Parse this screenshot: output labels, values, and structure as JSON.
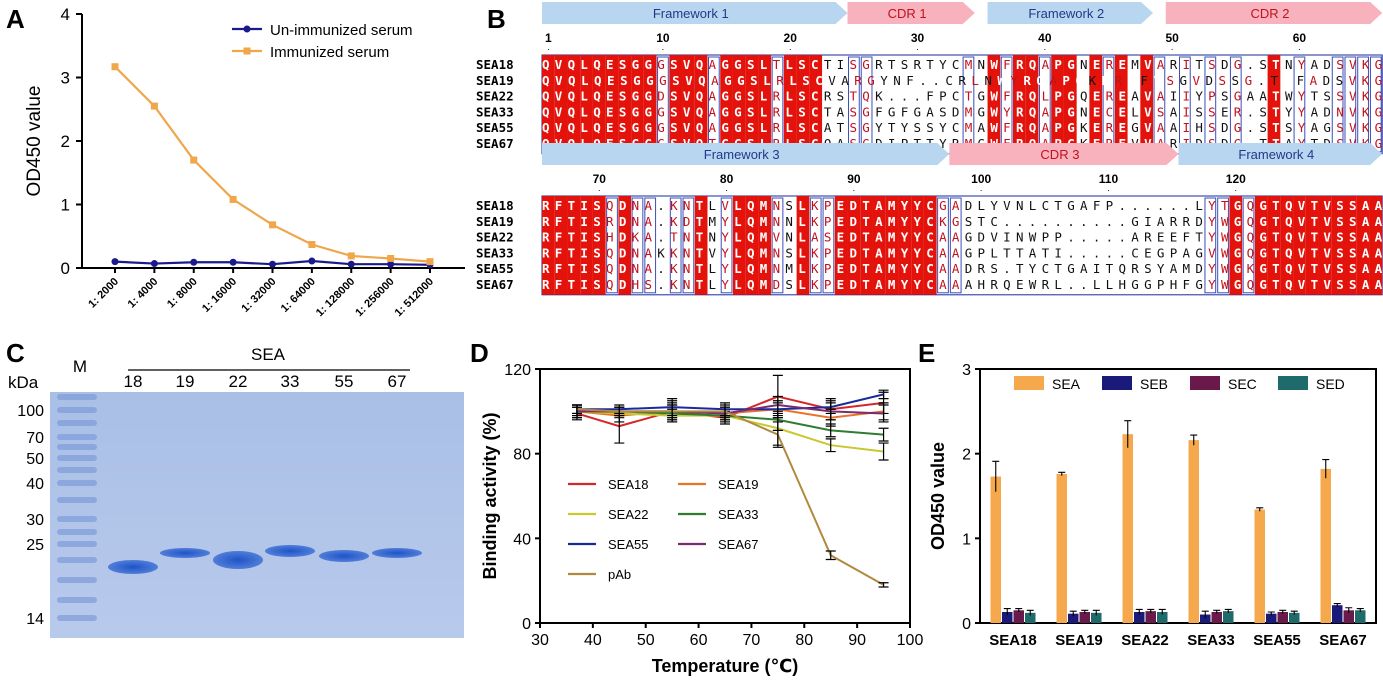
{
  "chart_data": [
    {
      "panel": "A",
      "type": "line",
      "xlabel": "",
      "ylabel": "OD450 value",
      "ylim": [
        0,
        4
      ],
      "yticks": [
        "0",
        "1",
        "2",
        "3",
        "4"
      ],
      "categories": [
        "1: 2000",
        "1: 4000",
        "1: 8000",
        "1: 16000",
        "1: 32000",
        "1: 64000",
        "1: 128000",
        "1: 256000",
        "1: 512000"
      ],
      "series": [
        {
          "name": "Un-immunized serum",
          "color": "#1a1a8c",
          "values": [
            0.1,
            0.07,
            0.09,
            0.09,
            0.06,
            0.11,
            0.06,
            0.06,
            0.05
          ]
        },
        {
          "name": "Immunized serum",
          "color": "#f0a64a",
          "values": [
            3.17,
            2.55,
            1.7,
            1.08,
            0.68,
            0.37,
            0.19,
            0.15,
            0.1
          ]
        }
      ],
      "legend_position": "top-right"
    },
    {
      "panel": "D",
      "type": "line",
      "xlabel": "Temperature (℃)",
      "ylabel": "Binding activity (%)",
      "xlim": [
        30,
        100
      ],
      "ylim": [
        0,
        120
      ],
      "xticks": [
        "30",
        "40",
        "50",
        "60",
        "70",
        "80",
        "90",
        "100"
      ],
      "yticks": [
        "0",
        "40",
        "80",
        "120"
      ],
      "x": [
        37,
        45,
        55,
        65,
        75,
        85,
        95
      ],
      "series": [
        {
          "name": "SEA18",
          "color": "#d62728",
          "values": [
            99,
            93,
            100,
            97,
            107,
            101,
            104
          ],
          "err": [
            3,
            8,
            5,
            3,
            10,
            5,
            5
          ]
        },
        {
          "name": "SEA19",
          "color": "#e8742c",
          "values": [
            100,
            98,
            100,
            99,
            101,
            97,
            100
          ],
          "err": [
            3,
            3,
            4,
            3,
            4,
            4,
            4
          ]
        },
        {
          "name": "SEA22",
          "color": "#c8c832",
          "values": [
            100,
            99,
            98,
            98,
            92,
            84,
            81
          ],
          "err": [
            2,
            2,
            3,
            3,
            8,
            3,
            4
          ]
        },
        {
          "name": "SEA33",
          "color": "#2e7d32",
          "values": [
            100,
            100,
            99,
            98,
            96,
            91,
            89
          ],
          "err": [
            2,
            2,
            3,
            3,
            5,
            3,
            3
          ]
        },
        {
          "name": "SEA55",
          "color": "#1a2a9c",
          "values": [
            101,
            101,
            102,
            101,
            101,
            102,
            108
          ],
          "err": [
            2,
            2,
            4,
            3,
            3,
            3,
            2
          ]
        },
        {
          "name": "SEA67",
          "color": "#7a2a6e",
          "values": [
            100,
            100,
            100,
            99,
            103,
            100,
            99
          ],
          "err": [
            3,
            2,
            3,
            3,
            4,
            4,
            4
          ]
        },
        {
          "name": "pAb",
          "color": "#b08a3e",
          "values": [
            101,
            100,
            100,
            100,
            89,
            32,
            18
          ],
          "err": [
            2,
            2,
            3,
            3,
            6,
            2,
            1
          ]
        }
      ],
      "legend_position": "bottom-left"
    },
    {
      "panel": "E",
      "type": "bar",
      "ylabel": "OD450 value",
      "ylim": [
        0,
        3
      ],
      "yticks": [
        "0",
        "1",
        "2",
        "3"
      ],
      "categories": [
        "SEA18",
        "SEA19",
        "SEA22",
        "SEA33",
        "SEA55",
        "SEA67"
      ],
      "series": [
        {
          "name": "SEA",
          "color": "#f5a84c",
          "values": [
            1.73,
            1.76,
            2.23,
            2.16,
            1.34,
            1.82
          ],
          "err": [
            0.18,
            0.02,
            0.16,
            0.06,
            0.02,
            0.11
          ]
        },
        {
          "name": "SEB",
          "color": "#1a1a7a",
          "values": [
            0.13,
            0.11,
            0.13,
            0.1,
            0.11,
            0.21
          ],
          "err": [
            0.04,
            0.03,
            0.03,
            0.04,
            0.02,
            0.02
          ]
        },
        {
          "name": "SEC",
          "color": "#6a1a4a",
          "values": [
            0.15,
            0.13,
            0.14,
            0.13,
            0.13,
            0.15
          ],
          "err": [
            0.02,
            0.02,
            0.02,
            0.02,
            0.02,
            0.03
          ]
        },
        {
          "name": "SED",
          "color": "#1f6a6a",
          "values": [
            0.12,
            0.12,
            0.13,
            0.14,
            0.12,
            0.15
          ],
          "err": [
            0.03,
            0.03,
            0.03,
            0.02,
            0.02,
            0.02
          ]
        }
      ],
      "legend_position": "top"
    }
  ],
  "panels": {
    "A": "A",
    "B": "B",
    "C": "C",
    "D": "D",
    "E": "E"
  },
  "alignment": {
    "regions1": [
      "Framework 1",
      "CDR 1",
      "Framework 2",
      "CDR 2"
    ],
    "ticks1": [
      "1",
      "10",
      "20",
      "30",
      "40",
      "50",
      "60"
    ],
    "regions2": [
      "Framework 3",
      "CDR 3",
      "Framework 4"
    ],
    "ticks2": [
      "70",
      "80",
      "90",
      "100",
      "110",
      "120"
    ],
    "names": [
      "SEA18",
      "SEA19",
      "SEA22",
      "SEA33",
      "SEA55",
      "SEA67"
    ],
    "block1": [
      "QVQLQESGGGSVQAGGSLTLSCTISGRTSRTYCMNWFRQAPGNEREMVARITSDG.STNYADSVKG",
      "QVQLQESGGGSVQAGGSLRLSCVARGYNF..CRLNWYRQAPGKEREFVSGVDSSG.TTFADSVKG",
      "QVQLQESGGDSVQAGGSLRLSCRSTQK...FPCTGWFRQLPGQEREAVAIIYPSGAATWYTSSVKG",
      "QVQLQESGGGSVQAGGSLRLSCTASGFGFGASDMGWYRQAPGNECELVSAISSER.STYYADNVKG",
      "QVQLQESGGGSVQAGGSLRLSCATSGYTYSSYCMAWFRQAPGKEREGVAAIHSDG.STSYAGSVKG",
      "QVQLQESGGGSVQTGGSLRLSCQASGDIPTTYRMGWFRQAPGKEREVVARIDSDG.TTAYTDSVKG"
    ],
    "block2": [
      "RFTISQDNA.KNTLVLQMNSLKPEDTAMYYCGADLYVNLCTGAFP......LYTGQGTQVTVSSAA",
      "RFTISRDNA.KDTMYLQMNNLKPEDTAMYYCKGSTC..........GIARRDYWGQGTQVTVSSAA",
      "RFTISHDKA.TNTNYLQMVNLASEDTAMYYCAAGDVINWPP.....AREEFTYWGQGTQVTVSSAA",
      "RFTISQDNAKKNTVYLQMNSLKPEDTAMYYCAAGPLTTATI.....CEGPAGVWGQGTQVTVSSAA",
      "RFTISQDNA.KNTLYLQMNMLKPEDTAMYYCAADRS.TYCTGAITQRSYAMDYWGKGTQVTVSSAA",
      "RFTISQDHS.KNTLYLQMDSLKPEDTAMYYCAAAHRQEWRL..LLHGGPHFGYWGQGTQVTVSSAA"
    ]
  },
  "gel": {
    "kda_label": "kDa",
    "marker_label": "M",
    "group_label": "SEA",
    "lanes": [
      "18",
      "19",
      "22",
      "33",
      "55",
      "67"
    ],
    "mw": [
      "100",
      "70",
      "50",
      "40",
      "30",
      "25",
      "14"
    ]
  }
}
